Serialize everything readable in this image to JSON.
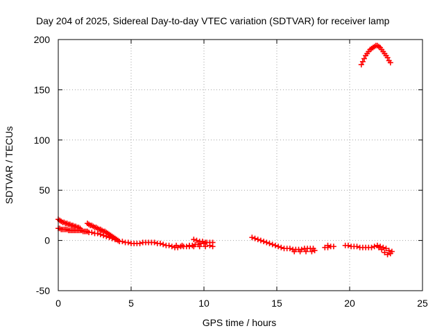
{
  "chart_data": {
    "type": "scatter",
    "title": "Day 204 of 2025, Sidereal Day-to-day VTEC variation (SDTVAR) for receiver lamp",
    "xlabel": "GPS time / hours",
    "ylabel": "SDTVAR / TECUs",
    "xlim": [
      0,
      25
    ],
    "ylim": [
      -50,
      200
    ],
    "xticks": [
      0,
      5,
      10,
      15,
      20,
      25
    ],
    "yticks": [
      -50,
      0,
      50,
      100,
      150,
      200
    ],
    "grid": true,
    "marker": "plus",
    "color": "#ff0000",
    "series": [
      {
        "name": "SDTVAR",
        "points": [
          [
            0.0,
            21
          ],
          [
            0.1,
            20
          ],
          [
            0.2,
            19
          ],
          [
            0.3,
            18
          ],
          [
            0.4,
            18
          ],
          [
            0.5,
            17
          ],
          [
            0.6,
            17
          ],
          [
            0.7,
            16
          ],
          [
            0.8,
            16
          ],
          [
            0.9,
            15
          ],
          [
            1.0,
            15
          ],
          [
            1.1,
            14
          ],
          [
            1.2,
            14
          ],
          [
            1.3,
            13
          ],
          [
            1.4,
            13
          ],
          [
            1.5,
            12
          ],
          [
            0.0,
            12
          ],
          [
            0.1,
            12
          ],
          [
            0.2,
            11
          ],
          [
            0.3,
            11
          ],
          [
            0.4,
            11
          ],
          [
            0.5,
            11
          ],
          [
            0.6,
            11
          ],
          [
            0.7,
            10
          ],
          [
            0.8,
            10
          ],
          [
            0.9,
            10
          ],
          [
            1.0,
            10
          ],
          [
            1.1,
            10
          ],
          [
            1.2,
            10
          ],
          [
            1.3,
            10
          ],
          [
            1.4,
            10
          ],
          [
            1.5,
            10
          ],
          [
            1.6,
            10
          ],
          [
            1.7,
            9
          ],
          [
            1.8,
            9
          ],
          [
            1.9,
            9
          ],
          [
            2.0,
            9
          ],
          [
            2.0,
            17
          ],
          [
            2.1,
            16
          ],
          [
            2.2,
            15
          ],
          [
            2.3,
            15
          ],
          [
            2.4,
            14
          ],
          [
            2.5,
            13
          ],
          [
            2.6,
            13
          ],
          [
            2.7,
            12
          ],
          [
            2.8,
            11
          ],
          [
            2.9,
            11
          ],
          [
            3.0,
            10
          ],
          [
            3.1,
            9
          ],
          [
            3.2,
            9
          ],
          [
            3.3,
            8
          ],
          [
            3.4,
            7
          ],
          [
            3.5,
            6
          ],
          [
            3.6,
            5
          ],
          [
            3.7,
            4
          ],
          [
            3.8,
            3
          ],
          [
            3.9,
            2
          ],
          [
            4.0,
            1
          ],
          [
            2.1,
            8
          ],
          [
            2.3,
            8
          ],
          [
            2.5,
            7
          ],
          [
            2.7,
            7
          ],
          [
            2.9,
            6
          ],
          [
            3.1,
            5
          ],
          [
            3.3,
            4
          ],
          [
            3.5,
            3
          ],
          [
            3.7,
            2
          ],
          [
            3.9,
            1
          ],
          [
            4.1,
            0
          ],
          [
            4.2,
            -1
          ],
          [
            4.4,
            -1
          ],
          [
            4.6,
            -2
          ],
          [
            4.8,
            -2
          ],
          [
            5.0,
            -3
          ],
          [
            5.2,
            -3
          ],
          [
            5.4,
            -3
          ],
          [
            5.6,
            -3
          ],
          [
            5.8,
            -2
          ],
          [
            6.0,
            -2
          ],
          [
            6.2,
            -2
          ],
          [
            6.4,
            -2
          ],
          [
            6.6,
            -2
          ],
          [
            6.8,
            -3
          ],
          [
            7.0,
            -3
          ],
          [
            7.2,
            -4
          ],
          [
            7.4,
            -5
          ],
          [
            7.6,
            -5
          ],
          [
            7.8,
            -6
          ],
          [
            8.0,
            -7
          ],
          [
            8.2,
            -7
          ],
          [
            8.4,
            -6
          ],
          [
            8.6,
            -6
          ],
          [
            8.8,
            -6
          ],
          [
            9.0,
            -5
          ],
          [
            9.2,
            -5
          ],
          [
            9.4,
            -4
          ],
          [
            9.6,
            -4
          ],
          [
            9.8,
            -3
          ],
          [
            10.0,
            -3
          ],
          [
            10.2,
            -2
          ],
          [
            10.4,
            -2
          ],
          [
            10.6,
            -2
          ],
          [
            8.1,
            -5
          ],
          [
            8.5,
            -5
          ],
          [
            9.0,
            -6
          ],
          [
            9.3,
            -6
          ],
          [
            9.7,
            -6
          ],
          [
            10.1,
            -6
          ],
          [
            10.4,
            -5
          ],
          [
            10.6,
            -6
          ],
          [
            9.3,
            1
          ],
          [
            9.5,
            0
          ],
          [
            9.7,
            -1
          ],
          [
            9.9,
            -1
          ],
          [
            10.1,
            -2
          ],
          [
            13.3,
            3
          ],
          [
            13.5,
            2
          ],
          [
            13.7,
            1
          ],
          [
            13.9,
            0
          ],
          [
            14.1,
            -1
          ],
          [
            14.3,
            -2
          ],
          [
            14.5,
            -3
          ],
          [
            14.7,
            -4
          ],
          [
            14.9,
            -5
          ],
          [
            15.1,
            -6
          ],
          [
            15.3,
            -7
          ],
          [
            15.5,
            -8
          ],
          [
            15.7,
            -8
          ],
          [
            15.9,
            -8
          ],
          [
            16.1,
            -9
          ],
          [
            16.3,
            -9
          ],
          [
            16.5,
            -9
          ],
          [
            16.7,
            -9
          ],
          [
            16.9,
            -8
          ],
          [
            17.1,
            -8
          ],
          [
            17.3,
            -8
          ],
          [
            17.5,
            -8
          ],
          [
            16.2,
            -11
          ],
          [
            16.6,
            -11
          ],
          [
            17.0,
            -11
          ],
          [
            17.4,
            -11
          ],
          [
            17.6,
            -10
          ],
          [
            18.3,
            -7
          ],
          [
            18.5,
            -7
          ],
          [
            18.7,
            -6
          ],
          [
            18.9,
            -6
          ],
          [
            18.5,
            -5
          ],
          [
            19.7,
            -5
          ],
          [
            19.9,
            -5
          ],
          [
            20.1,
            -6
          ],
          [
            20.3,
            -6
          ],
          [
            20.5,
            -6
          ],
          [
            20.7,
            -7
          ],
          [
            20.9,
            -7
          ],
          [
            21.1,
            -7
          ],
          [
            21.3,
            -7
          ],
          [
            21.5,
            -7
          ],
          [
            21.7,
            -6
          ],
          [
            21.9,
            -5
          ],
          [
            22.1,
            -6
          ],
          [
            22.3,
            -7
          ],
          [
            22.5,
            -8
          ],
          [
            22.7,
            -10
          ],
          [
            22.9,
            -11
          ],
          [
            22.0,
            -7
          ],
          [
            22.2,
            -9
          ],
          [
            22.4,
            -12
          ],
          [
            22.6,
            -14
          ],
          [
            22.8,
            -13
          ],
          [
            20.8,
            175
          ],
          [
            20.9,
            178
          ],
          [
            21.0,
            181
          ],
          [
            21.1,
            184
          ],
          [
            21.2,
            186
          ],
          [
            21.3,
            188
          ],
          [
            21.4,
            190
          ],
          [
            21.5,
            191
          ],
          [
            21.6,
            192
          ],
          [
            21.7,
            193
          ],
          [
            21.8,
            194
          ],
          [
            21.9,
            194
          ],
          [
            22.0,
            193
          ],
          [
            22.1,
            192
          ],
          [
            22.2,
            190
          ],
          [
            22.3,
            188
          ],
          [
            22.4,
            186
          ],
          [
            22.5,
            184
          ],
          [
            22.6,
            182
          ],
          [
            22.7,
            179
          ],
          [
            22.8,
            177
          ]
        ]
      }
    ]
  }
}
